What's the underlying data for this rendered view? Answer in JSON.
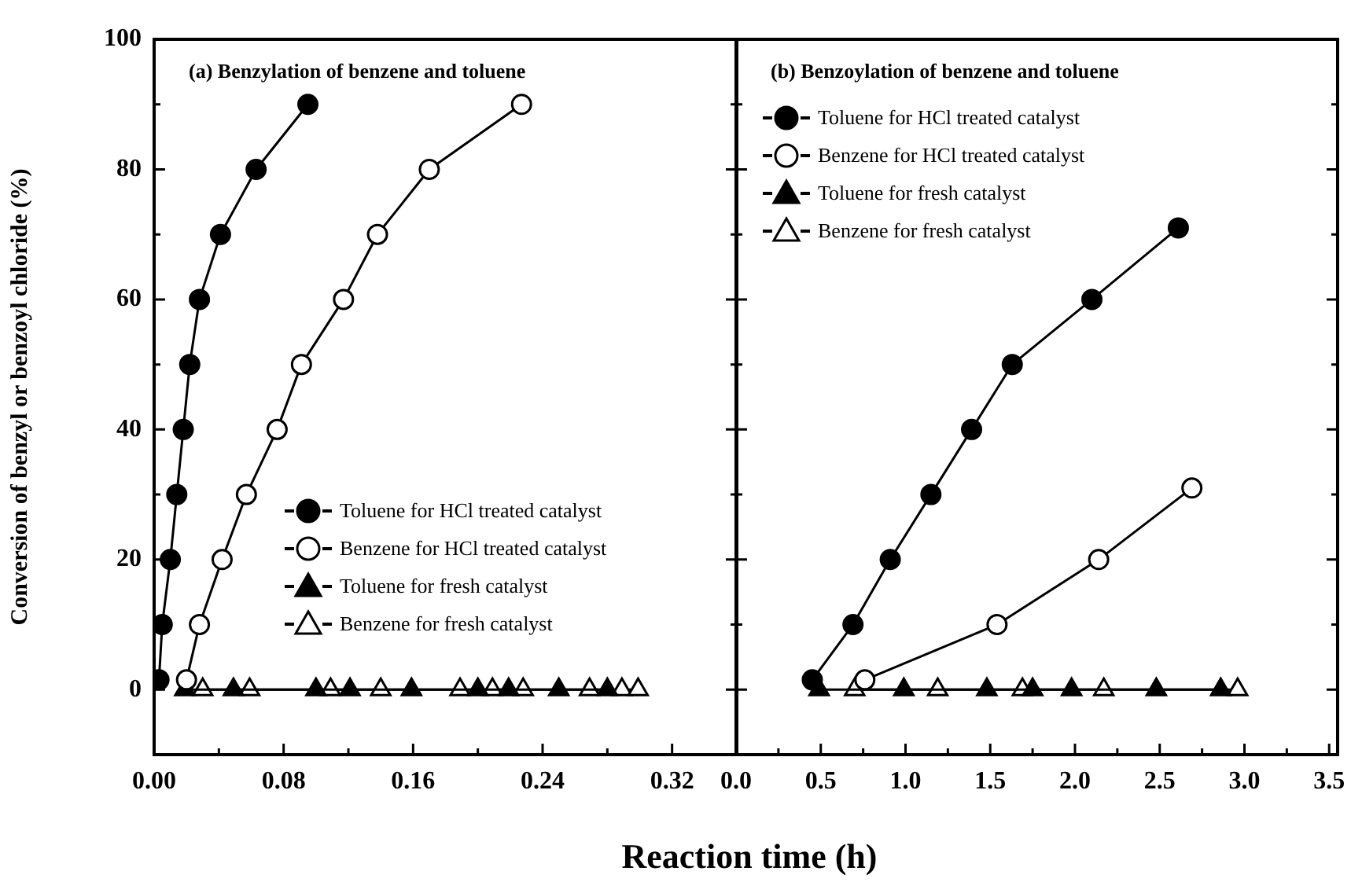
{
  "chart_data": [
    {
      "type": "line",
      "title": "(a) Benzylation of benzene and toluene",
      "ylabel": "Conversion of benzyl or benzoyl chloride (%)",
      "xlabel": "Reaction time (h)",
      "legend": "right",
      "grid": false,
      "line_style": "solid",
      "xlim": [
        0,
        0.36
      ],
      "xticks": [
        {
          "value": 0,
          "label": "0.00"
        },
        {
          "value": 0.04,
          "label": null
        },
        {
          "value": 0.08,
          "label": "0.08"
        },
        {
          "value": 0.12,
          "label": null
        },
        {
          "value": 0.16,
          "label": "0.16"
        },
        {
          "value": 0.2,
          "label": null
        },
        {
          "value": 0.24,
          "label": "0.24"
        },
        {
          "value": 0.28,
          "label": null
        },
        {
          "value": 0.32,
          "label": "0.32"
        }
      ],
      "ylim": [
        -10,
        100
      ],
      "yticks": [
        0,
        {
          "value": 10,
          "label": null
        },
        20,
        {
          "value": 30,
          "label": null
        },
        40,
        {
          "value": 50,
          "label": null
        },
        60,
        {
          "value": 70,
          "label": null
        },
        80,
        {
          "value": 90,
          "label": null
        },
        100
      ],
      "series": [
        {
          "name": "Toluene for HCl treated catalyst",
          "color": "#000000",
          "marker": "circle",
          "x": [
            0.003,
            0.005,
            0.01,
            0.014,
            0.018,
            0.022,
            0.028,
            0.041,
            0.063,
            0.095
          ],
          "values": [
            1.5,
            10,
            20,
            30,
            40,
            50,
            60,
            70,
            80,
            90
          ]
        },
        {
          "name": "Benzene for HCl treated catalyst",
          "color": "#ffffff",
          "marker": "circle",
          "x": [
            0.02,
            0.028,
            0.042,
            0.057,
            0.076,
            0.091,
            0.117,
            0.138,
            0.17,
            0.227
          ],
          "values": [
            1.5,
            10,
            20,
            30,
            40,
            50,
            60,
            70,
            80,
            90
          ]
        },
        {
          "name": "Toluene for fresh catalyst",
          "color": "#000000",
          "marker": "triangle",
          "x": [
            0.019,
            0.049,
            0.1,
            0.121,
            0.159,
            0.2,
            0.219,
            0.25,
            0.28
          ],
          "values": [
            0,
            0,
            0,
            0,
            0,
            0,
            0,
            0,
            0
          ]
        },
        {
          "name": "Benzene for fresh catalyst",
          "color": "#ffffff",
          "marker": "triangle",
          "x": [
            0.03,
            0.059,
            0.109,
            0.14,
            0.189,
            0.209,
            0.228,
            0.269,
            0.289,
            0.299
          ],
          "values": [
            0,
            0,
            0,
            0,
            0,
            0,
            0,
            0,
            0,
            0
          ]
        }
      ]
    },
    {
      "type": "line",
      "title": "(b) Benzoylation of benzene and toluene",
      "legend": "top left",
      "grid": false,
      "line_style": "solid",
      "tick_labels": "x",
      "xlim": [
        0,
        3.55
      ],
      "xticks": [
        {
          "value": 0,
          "label": "0.0"
        },
        {
          "value": 0.25,
          "label": null
        },
        {
          "value": 0.5,
          "label": "0.5"
        },
        {
          "value": 0.75,
          "label": null
        },
        {
          "value": 1,
          "label": "1.0"
        },
        {
          "value": 1.25,
          "label": null
        },
        {
          "value": 1.5,
          "label": "1.5"
        },
        {
          "value": 1.75,
          "label": null
        },
        {
          "value": 2,
          "label": "2.0"
        },
        {
          "value": 2.25,
          "label": null
        },
        {
          "value": 2.5,
          "label": "2.5"
        },
        {
          "value": 2.75,
          "label": null
        },
        {
          "value": 3,
          "label": "3.0"
        },
        {
          "value": 3.25,
          "label": null
        },
        {
          "value": 3.5,
          "label": "3.5"
        }
      ],
      "ylim": [
        -10,
        100
      ],
      "yticks": [
        0,
        {
          "value": 10,
          "label": null
        },
        20,
        {
          "value": 30,
          "label": null
        },
        40,
        {
          "value": 50,
          "label": null
        },
        60,
        {
          "value": 70,
          "label": null
        },
        80,
        {
          "value": 90,
          "label": null
        },
        100
      ],
      "series": [
        {
          "name": "Toluene for HCl treated catalyst",
          "color": "#000000",
          "marker": "circle",
          "x": [
            0.45,
            0.69,
            0.91,
            1.15,
            1.39,
            1.63,
            2.1,
            2.61
          ],
          "values": [
            1.5,
            10,
            20,
            30,
            40,
            50,
            60,
            71
          ]
        },
        {
          "name": "Benzene for HCl treated catalyst",
          "color": "#ffffff",
          "marker": "circle",
          "x": [
            0.76,
            1.54,
            2.14,
            2.69
          ],
          "values": [
            1.5,
            10,
            20,
            31
          ]
        },
        {
          "name": "Toluene for fresh catalyst",
          "color": "#000000",
          "marker": "triangle",
          "x": [
            0.49,
            0.99,
            1.48,
            1.75,
            1.98,
            2.48,
            2.86
          ],
          "values": [
            0,
            0,
            0,
            0,
            0,
            0,
            0
          ]
        },
        {
          "name": "Benzene for fresh catalyst",
          "color": "#ffffff",
          "marker": "triangle",
          "x": [
            0.7,
            1.19,
            1.69,
            2.17,
            2.96
          ],
          "values": [
            0,
            0,
            0,
            0,
            0
          ]
        }
      ]
    }
  ]
}
